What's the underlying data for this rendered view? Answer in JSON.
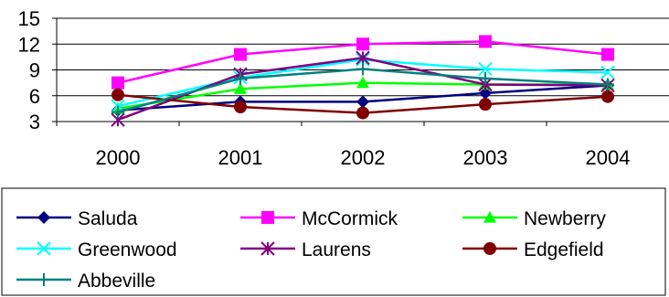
{
  "chart_data": {
    "type": "line",
    "categories": [
      "2000",
      "2001",
      "2002",
      "2003",
      "2004"
    ],
    "yticks": [
      "3",
      "6",
      "9",
      "12",
      "15"
    ],
    "ylim": [
      3,
      15
    ],
    "grid": "horizontal",
    "legend_position": "bottom",
    "title": "",
    "xlabel": "",
    "ylabel": "",
    "series": [
      {
        "name": "Saluda",
        "color": "#000080",
        "marker": "diamond",
        "values": [
          4.3,
          5.3,
          5.3,
          6.3,
          7.2
        ]
      },
      {
        "name": "McCormick",
        "color": "#FF00FF",
        "marker": "square",
        "values": [
          7.5,
          10.8,
          12.0,
          12.3,
          10.8
        ]
      },
      {
        "name": "Newberry",
        "color": "#00FF00",
        "marker": "triangle",
        "values": [
          4.5,
          6.8,
          7.5,
          7.3,
          7.3
        ]
      },
      {
        "name": "Greenwood",
        "color": "#00FFFF",
        "marker": "x",
        "values": [
          4.8,
          8.1,
          10.2,
          9.1,
          8.7
        ]
      },
      {
        "name": "Laurens",
        "color": "#800080",
        "marker": "asterisk",
        "values": [
          3.2,
          8.5,
          10.4,
          7.3,
          7.2
        ]
      },
      {
        "name": "Edgefield",
        "color": "#800000",
        "marker": "circle",
        "values": [
          6.1,
          4.7,
          4.0,
          5.0,
          5.9
        ]
      },
      {
        "name": "Abbeville",
        "color": "#008080",
        "marker": "plus",
        "values": [
          4.1,
          8.0,
          9.1,
          8.0,
          7.3
        ]
      }
    ]
  }
}
